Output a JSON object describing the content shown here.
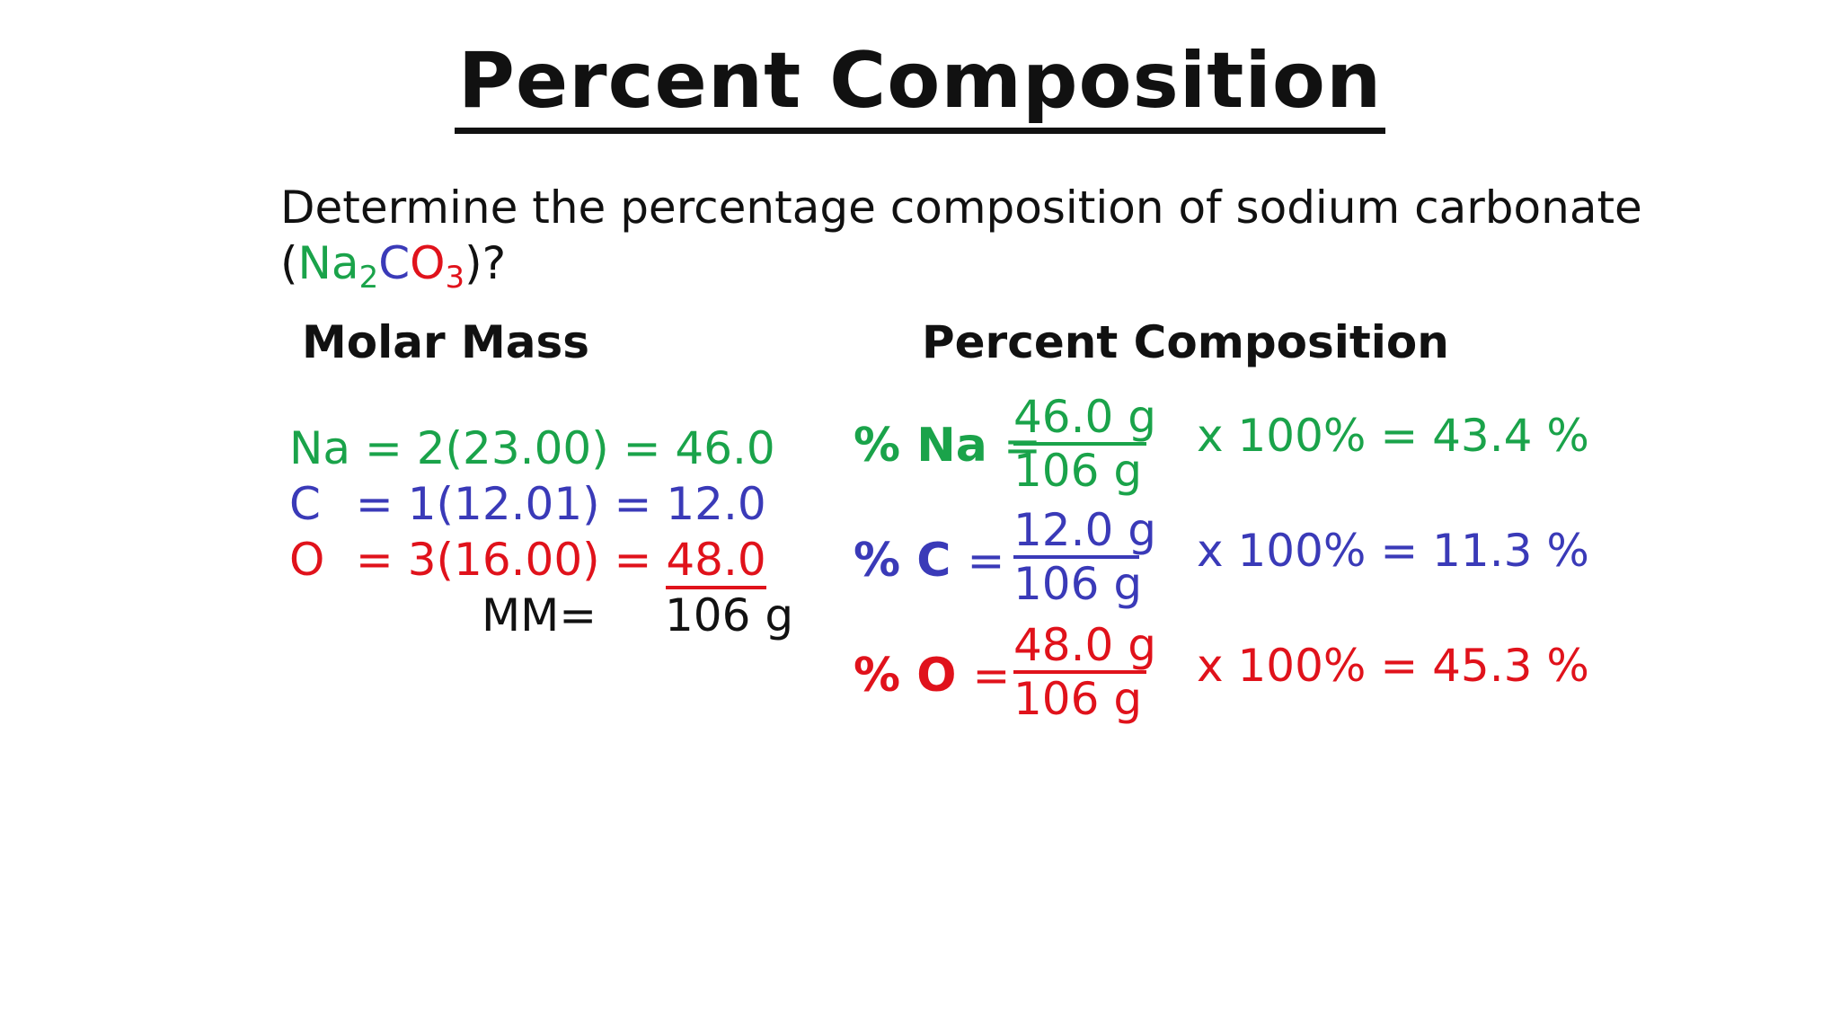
{
  "title": "Percent Composition",
  "question": {
    "line1": "Determine the percentage composition of sodium carbonate",
    "open_paren": "(",
    "na": "Na",
    "na_sub": "2",
    "c": "C",
    "o": "O",
    "o_sub": "3",
    "close": ")?"
  },
  "molar_mass": {
    "heading": "Molar Mass",
    "rows": [
      {
        "element": "Na",
        "calc": "= 2(23.00) =",
        "value": "46.0"
      },
      {
        "element": "C",
        "calc": "=  1(12.01)  =",
        "value": "12.0"
      },
      {
        "element": "O",
        "calc": "=  3(16.00) =",
        "value": "48.0"
      }
    ],
    "total_label": "MM=",
    "total_value": "106 g"
  },
  "percent_composition": {
    "heading": "Percent Composition",
    "rows": [
      {
        "label": "% Na",
        "eq": "=",
        "numerator": "46.0 g",
        "denominator": "106 g",
        "result": "x 100% = 43.4 %"
      },
      {
        "label": "% C",
        "eq": "=",
        "numerator": "12.0 g",
        "denominator": "106 g",
        "result": "x 100% = 11.3 %"
      },
      {
        "label": "% O",
        "eq": "=",
        "numerator": "48.0 g",
        "denominator": "106 g",
        "result": "x 100% = 45.3 %"
      }
    ]
  },
  "colors": {
    "na": "#1aa34a",
    "c": "#3a3ab8",
    "o": "#e0121b",
    "text": "#111111"
  }
}
